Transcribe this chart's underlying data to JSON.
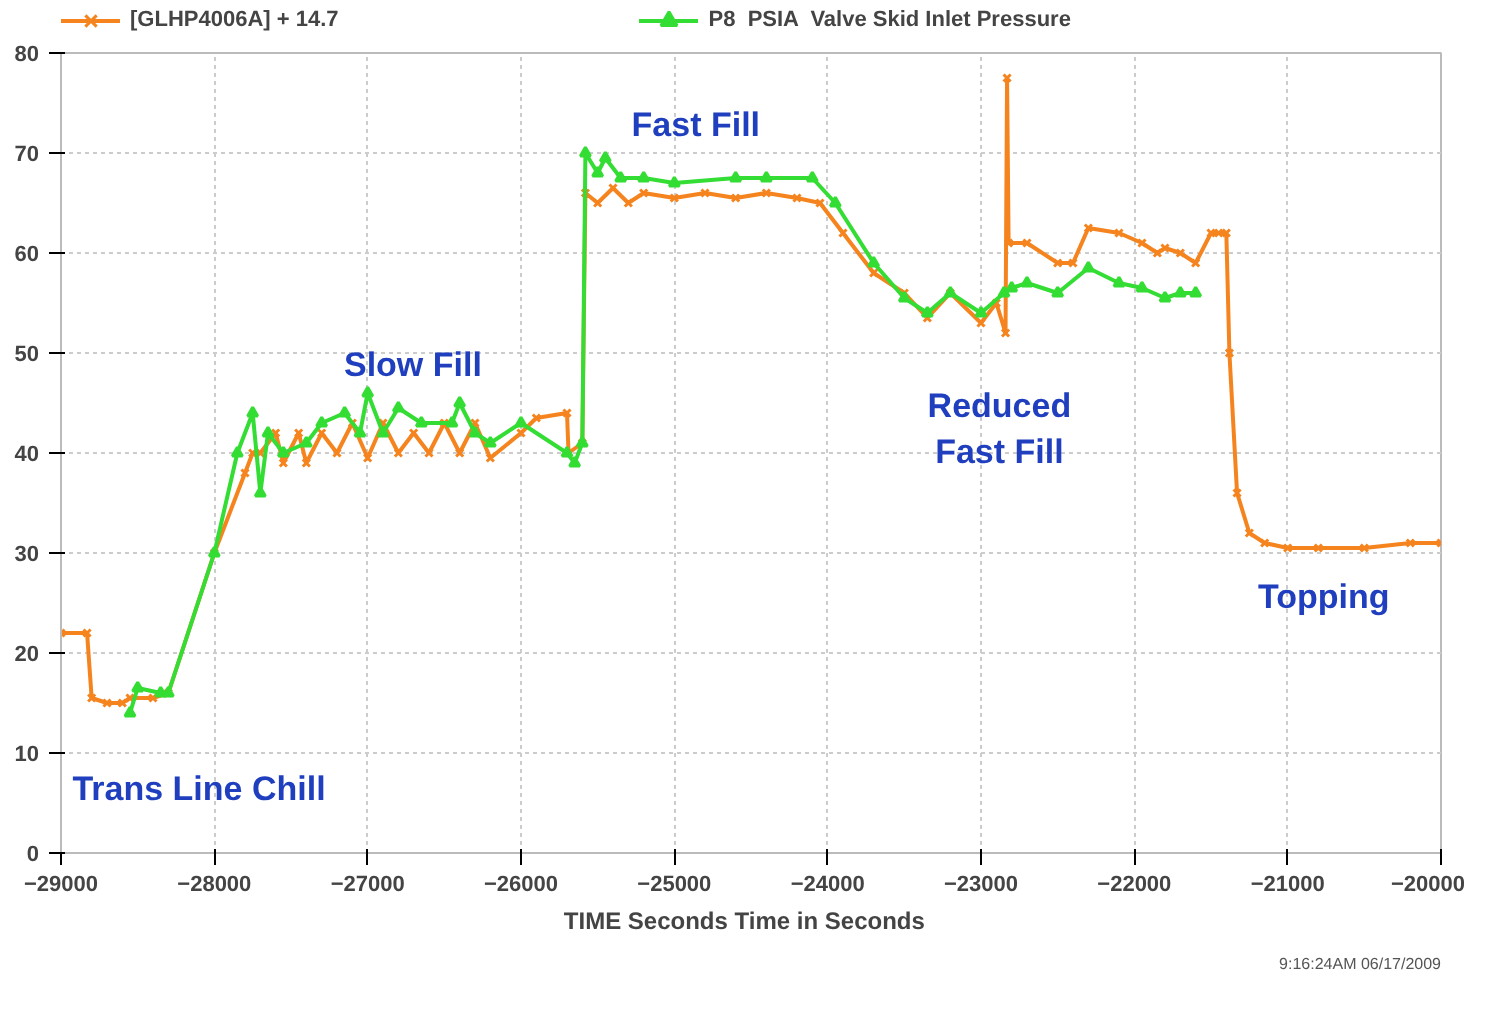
{
  "chart_data": {
    "type": "line",
    "xlabel": "TIME  Seconds  Time in Seconds",
    "xlim": [
      -29000,
      -20000
    ],
    "ylim": [
      0,
      80
    ],
    "xticks": [
      -29000,
      -28000,
      -27000,
      -26000,
      -25000,
      -24000,
      -23000,
      -22000,
      -21000,
      -20000
    ],
    "yticks": [
      0,
      10,
      20,
      30,
      40,
      50,
      60,
      70,
      80
    ],
    "grid": true,
    "legend": "top",
    "line_style": "solid",
    "annotations": [
      "Trans Line Chill",
      "Slow Fill",
      "Fast Fill",
      "Reduced\nFast Fill",
      "Topping",
      "9:16:24AM 06/17/2009"
    ],
    "series": [
      {
        "name": "[GLHP4006A] + 14.7",
        "color": "#f5841f",
        "marker": "cross",
        "x": [
          -29000,
          -28830,
          -28800,
          -28700,
          -28600,
          -28550,
          -28400,
          -28300,
          -28000,
          -27800,
          -27750,
          -27700,
          -27600,
          -27550,
          -27450,
          -27400,
          -27300,
          -27200,
          -27100,
          -27000,
          -26900,
          -26800,
          -26700,
          -26600,
          -26500,
          -26400,
          -26300,
          -26200,
          -26000,
          -25900,
          -25700,
          -25690,
          -25600,
          -25580,
          -25500,
          -25400,
          -25300,
          -25200,
          -25000,
          -24800,
          -24600,
          -24400,
          -24200,
          -24050,
          -23900,
          -23700,
          -23500,
          -23350,
          -23200,
          -23000,
          -22900,
          -22840,
          -22830,
          -22820,
          -22700,
          -22500,
          -22400,
          -22300,
          -22100,
          -21950,
          -21850,
          -21800,
          -21700,
          -21600,
          -21500,
          -21450,
          -21400,
          -21380,
          -21330,
          -21250,
          -21150,
          -21000,
          -20800,
          -20500,
          -20200,
          -20000
        ],
        "values": [
          22,
          22,
          15.5,
          15,
          15,
          15.5,
          15.5,
          16,
          30,
          38,
          40,
          40,
          42,
          39,
          42,
          39,
          42,
          40,
          43,
          39.5,
          43,
          40,
          42,
          40,
          43,
          40,
          43,
          39.5,
          42,
          43.5,
          44,
          40,
          41,
          66,
          65,
          66.5,
          65,
          66,
          65.5,
          66,
          65.5,
          66,
          65.5,
          65,
          62,
          58,
          56,
          53.5,
          56,
          53,
          55,
          52,
          77.5,
          61,
          61,
          59,
          59,
          62.5,
          62,
          61,
          60,
          60.5,
          60,
          59,
          62,
          62,
          62,
          50,
          36,
          32,
          31,
          30.5,
          30.5,
          30.5,
          31,
          31
        ]
      },
      {
        "name": "P8  PSIA  Valve Skid Inlet Pressure",
        "color": "#33dd33",
        "marker": "triangle",
        "x": [
          -28550,
          -28500,
          -28350,
          -28300,
          -28000,
          -27850,
          -27750,
          -27700,
          -27650,
          -27550,
          -27400,
          -27300,
          -27150,
          -27050,
          -27000,
          -26900,
          -26800,
          -26650,
          -26450,
          -26400,
          -26300,
          -26200,
          -26000,
          -25700,
          -25650,
          -25600,
          -25580,
          -25500,
          -25450,
          -25350,
          -25200,
          -25000,
          -24600,
          -24400,
          -24100,
          -23950,
          -23700,
          -23500,
          -23350,
          -23200,
          -23000,
          -22850,
          -22800,
          -22700,
          -22500,
          -22300,
          -22100,
          -21950,
          -21800,
          -21700,
          -21600
        ],
        "values": [
          14,
          16.5,
          16,
          16,
          30,
          40,
          44,
          36,
          42,
          40,
          41,
          43,
          44,
          42,
          46,
          42,
          44.5,
          43,
          43,
          45,
          42,
          41,
          43,
          40,
          39,
          41,
          70,
          68,
          69.5,
          67.5,
          67.5,
          67,
          67.5,
          67.5,
          67.5,
          65,
          59,
          55.5,
          54,
          56,
          54,
          56,
          56.5,
          57,
          56,
          58.5,
          57,
          56.5,
          55.5,
          56,
          56
        ]
      }
    ]
  }
}
